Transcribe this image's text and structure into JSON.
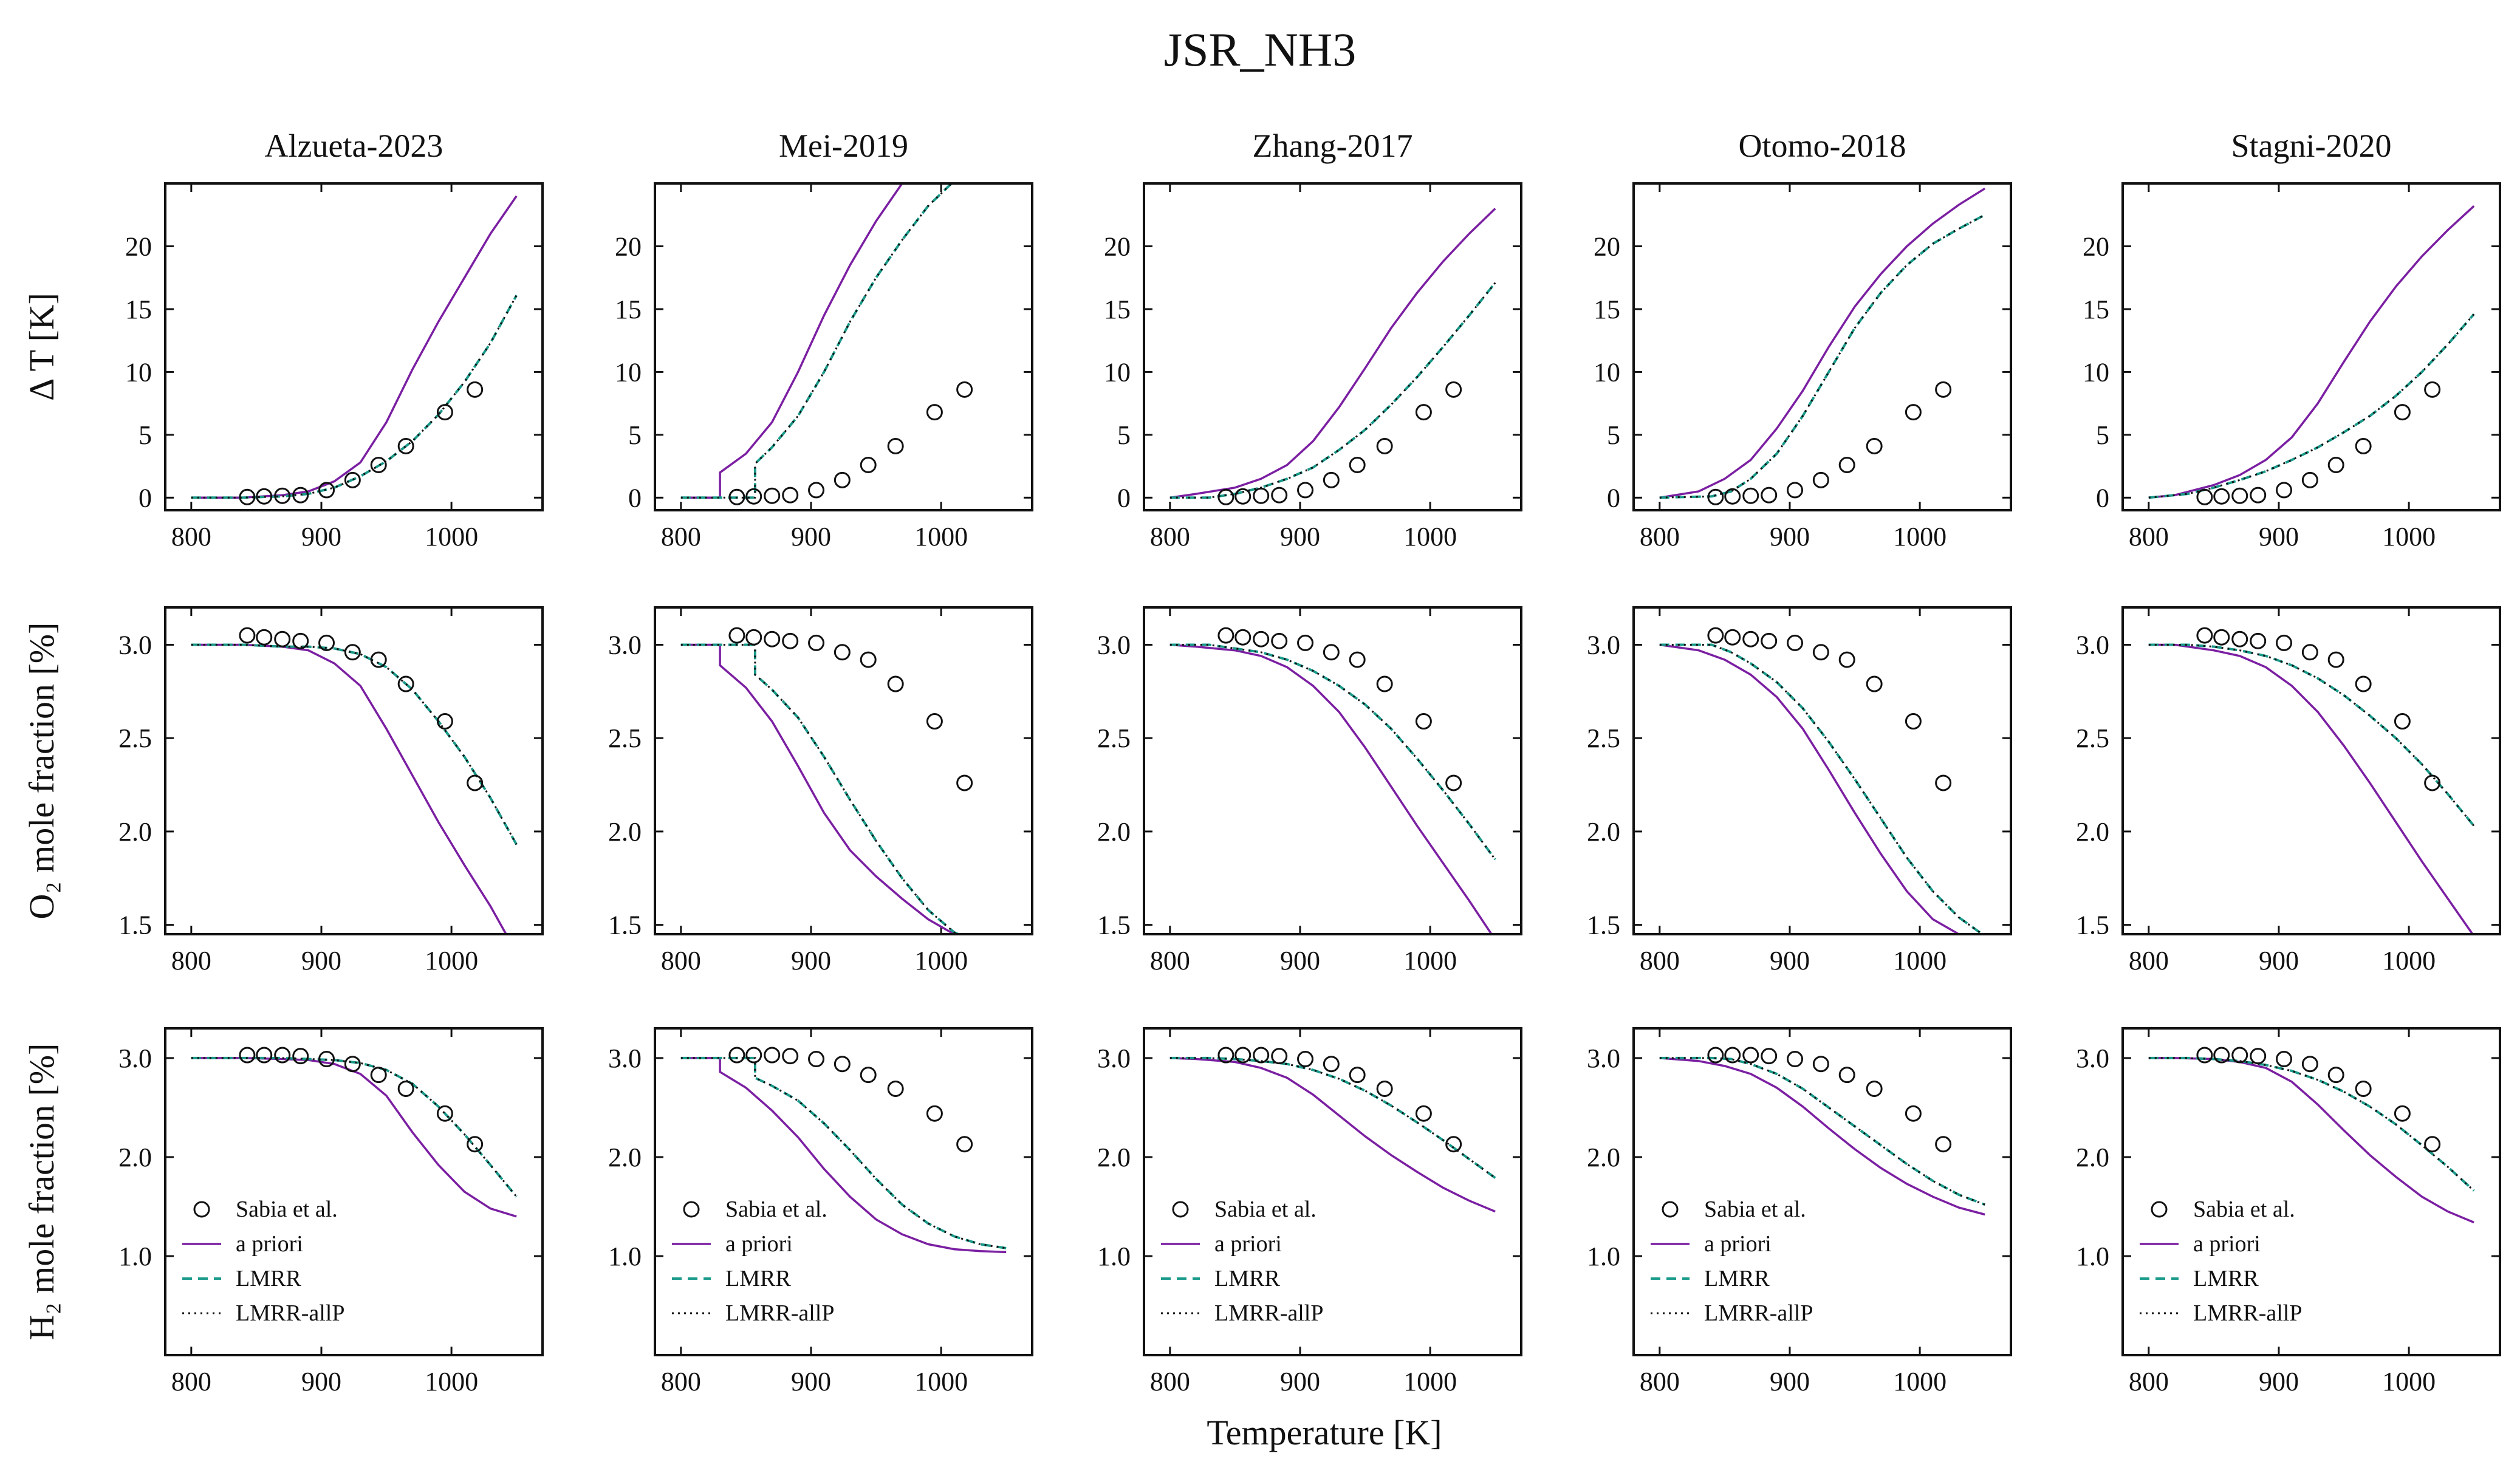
{
  "figure": {
    "title": "JSR_NH3",
    "xlabel": "Temperature [K]",
    "row_labels": [
      "Δ T [K]",
      "O₂ mole fraction [%]",
      "H₂ mole fraction [%]"
    ],
    "col_titles": [
      "Alzueta-2023",
      "Mei-2019",
      "Zhang-2017",
      "Otomo-2018",
      "Stagni-2020"
    ],
    "legend": [
      "Sabia et al.",
      "a priori",
      "LMRR",
      "LMRR-allP"
    ]
  },
  "colors": {
    "a_priori": "#7b1fa2",
    "lmrr": "#1a9a8a",
    "lmrr_allp": "#111111",
    "experiment": "#111111"
  },
  "chart_data": {
    "type": "line",
    "layout": "grid 3 rows x 5 columns",
    "xlim": [
      780,
      1070
    ],
    "xticks": [
      800,
      900,
      1000
    ],
    "rows": [
      {
        "name": "dT",
        "ylim": [
          -1,
          25
        ],
        "yticks": [
          0,
          5,
          10,
          15,
          20
        ],
        "ytick_labels": [
          "0",
          "5",
          "10",
          "15",
          "20"
        ]
      },
      {
        "name": "O2",
        "ylim": [
          1.45,
          3.2
        ],
        "yticks": [
          1.5,
          2.0,
          2.5,
          3.0
        ],
        "ytick_labels": [
          "1.5",
          "2.0",
          "2.5",
          "3.0"
        ]
      },
      {
        "name": "H2",
        "ylim": [
          0,
          3.3
        ],
        "yticks": [
          1.0,
          2.0,
          3.0
        ],
        "ytick_labels": [
          "1.0",
          "2.0",
          "3.0"
        ]
      }
    ],
    "experiment": {
      "name": "Sabia et al.",
      "x": [
        843,
        856,
        870,
        884,
        904,
        924,
        944,
        965,
        995,
        1018
      ],
      "dT": [
        0.05,
        0.1,
        0.15,
        0.2,
        0.6,
        1.4,
        2.6,
        4.1,
        6.8,
        8.6
      ],
      "O2": [
        3.05,
        3.04,
        3.03,
        3.02,
        3.01,
        2.96,
        2.92,
        2.79,
        2.59,
        2.26
      ],
      "H2": [
        3.03,
        3.03,
        3.03,
        3.02,
        2.99,
        2.94,
        2.83,
        2.69,
        2.44,
        2.13
      ]
    },
    "models": [
      {
        "title": "Alzueta-2023",
        "a_priori": {
          "x": [
            800,
            840,
            870,
            890,
            910,
            930,
            950,
            970,
            990,
            1010,
            1030,
            1050
          ],
          "dT": [
            0,
            0,
            0.2,
            0.5,
            1.3,
            2.8,
            6.0,
            10.2,
            14.0,
            17.5,
            21.0,
            24.0
          ],
          "O2": [
            3.0,
            3.0,
            2.99,
            2.97,
            2.9,
            2.78,
            2.55,
            2.3,
            2.05,
            1.82,
            1.6,
            1.35
          ],
          "H2": [
            3.0,
            3.0,
            2.99,
            2.98,
            2.94,
            2.84,
            2.62,
            2.25,
            1.92,
            1.65,
            1.48,
            1.4
          ]
        },
        "lmrr": {
          "x": [
            800,
            840,
            870,
            890,
            910,
            930,
            950,
            970,
            990,
            1010,
            1030,
            1050
          ],
          "dT": [
            0,
            0,
            0.1,
            0.3,
            0.8,
            1.7,
            2.9,
            4.5,
            6.6,
            9.2,
            12.3,
            16.1
          ],
          "O2": [
            3.0,
            3.0,
            2.99,
            2.99,
            2.98,
            2.95,
            2.88,
            2.76,
            2.59,
            2.4,
            2.18,
            1.93
          ],
          "H2": [
            3.0,
            3.0,
            3.0,
            2.99,
            2.98,
            2.95,
            2.88,
            2.74,
            2.51,
            2.23,
            1.92,
            1.6
          ]
        }
      },
      {
        "title": "Mei-2019",
        "a_priori": {
          "x": [
            800,
            830,
            830,
            850,
            870,
            890,
            910,
            930,
            950,
            970,
            990,
            1010,
            1030,
            1050
          ],
          "dT": [
            0,
            0,
            2.0,
            3.5,
            6.0,
            10.0,
            14.5,
            18.5,
            22.0,
            25.0,
            25.5,
            25.5,
            25.5,
            25.5
          ],
          "O2": [
            3.0,
            3.0,
            2.89,
            2.77,
            2.59,
            2.35,
            2.1,
            1.9,
            1.76,
            1.64,
            1.53,
            1.45,
            1.42,
            1.4
          ],
          "H2": [
            3.0,
            3.0,
            2.86,
            2.7,
            2.47,
            2.2,
            1.88,
            1.6,
            1.37,
            1.22,
            1.12,
            1.07,
            1.05,
            1.04
          ]
        },
        "lmrr": {
          "x": [
            800,
            857,
            857,
            870,
            890,
            910,
            930,
            950,
            970,
            990,
            1010,
            1030,
            1050
          ],
          "dT": [
            0,
            0,
            2.7,
            4.0,
            6.5,
            10.0,
            14.0,
            17.5,
            20.5,
            23.2,
            25.2,
            25.5,
            25.5
          ],
          "O2": [
            3.0,
            3.0,
            2.84,
            2.76,
            2.61,
            2.4,
            2.17,
            1.95,
            1.75,
            1.58,
            1.46,
            1.4,
            1.4
          ],
          "H2": [
            3.0,
            3.0,
            2.8,
            2.72,
            2.57,
            2.34,
            2.07,
            1.78,
            1.52,
            1.33,
            1.2,
            1.12,
            1.08
          ]
        }
      },
      {
        "title": "Zhang-2017",
        "a_priori": {
          "x": [
            800,
            820,
            850,
            870,
            890,
            910,
            930,
            950,
            970,
            990,
            1010,
            1030,
            1050
          ],
          "dT": [
            0,
            0.3,
            0.8,
            1.5,
            2.6,
            4.5,
            7.2,
            10.3,
            13.5,
            16.3,
            18.8,
            21.0,
            23.0
          ],
          "O2": [
            3.0,
            2.99,
            2.97,
            2.94,
            2.88,
            2.78,
            2.64,
            2.45,
            2.24,
            2.03,
            1.83,
            1.63,
            1.42
          ],
          "H2": [
            3.0,
            2.99,
            2.96,
            2.9,
            2.8,
            2.63,
            2.42,
            2.21,
            2.02,
            1.85,
            1.69,
            1.56,
            1.45
          ]
        },
        "lmrr": {
          "x": [
            800,
            830,
            850,
            870,
            890,
            910,
            930,
            950,
            970,
            990,
            1010,
            1030,
            1050
          ],
          "dT": [
            0,
            0,
            0.3,
            0.8,
            1.5,
            2.4,
            3.8,
            5.4,
            7.4,
            9.6,
            12.0,
            14.5,
            17.1
          ],
          "O2": [
            3.0,
            3.0,
            2.98,
            2.96,
            2.92,
            2.86,
            2.78,
            2.68,
            2.55,
            2.39,
            2.22,
            2.04,
            1.85
          ],
          "H2": [
            3.0,
            3.0,
            2.99,
            2.97,
            2.94,
            2.88,
            2.79,
            2.67,
            2.52,
            2.35,
            2.17,
            1.98,
            1.79
          ]
        }
      },
      {
        "title": "Otomo-2018",
        "a_priori": {
          "x": [
            800,
            830,
            850,
            870,
            890,
            910,
            930,
            950,
            970,
            990,
            1010,
            1030,
            1050
          ],
          "dT": [
            0,
            0.5,
            1.5,
            3.0,
            5.5,
            8.5,
            12.0,
            15.2,
            17.8,
            20.0,
            21.8,
            23.3,
            24.6
          ],
          "O2": [
            3.0,
            2.97,
            2.92,
            2.84,
            2.72,
            2.55,
            2.33,
            2.1,
            1.88,
            1.68,
            1.53,
            1.45,
            1.42
          ],
          "H2": [
            3.0,
            2.97,
            2.92,
            2.84,
            2.7,
            2.51,
            2.29,
            2.08,
            1.89,
            1.73,
            1.6,
            1.49,
            1.42
          ]
        },
        "lmrr": {
          "x": [
            800,
            840,
            855,
            870,
            890,
            910,
            930,
            950,
            970,
            990,
            1010,
            1030,
            1050
          ],
          "dT": [
            0,
            0.1,
            0.5,
            1.5,
            3.5,
            6.5,
            10.0,
            13.5,
            16.3,
            18.5,
            20.2,
            21.4,
            22.5
          ],
          "O2": [
            3.0,
            3.0,
            2.96,
            2.9,
            2.8,
            2.66,
            2.48,
            2.28,
            2.07,
            1.86,
            1.68,
            1.54,
            1.44
          ],
          "H2": [
            3.0,
            3.0,
            2.99,
            2.94,
            2.84,
            2.69,
            2.5,
            2.31,
            2.12,
            1.93,
            1.76,
            1.62,
            1.52
          ]
        }
      },
      {
        "title": "Stagni-2020",
        "a_priori": {
          "x": [
            800,
            820,
            850,
            870,
            890,
            910,
            930,
            950,
            970,
            990,
            1010,
            1030,
            1050
          ],
          "dT": [
            0,
            0.2,
            1.0,
            1.8,
            3.0,
            4.8,
            7.5,
            10.8,
            14.0,
            16.8,
            19.2,
            21.3,
            23.2
          ],
          "O2": [
            3.0,
            3.0,
            2.97,
            2.94,
            2.88,
            2.78,
            2.64,
            2.46,
            2.26,
            2.05,
            1.84,
            1.64,
            1.44
          ],
          "H2": [
            3.0,
            3.0,
            2.99,
            2.96,
            2.9,
            2.76,
            2.53,
            2.27,
            2.02,
            1.8,
            1.6,
            1.45,
            1.34
          ]
        },
        "lmrr": {
          "x": [
            800,
            830,
            850,
            870,
            890,
            910,
            930,
            950,
            970,
            990,
            1010,
            1030,
            1050
          ],
          "dT": [
            0,
            0.3,
            0.8,
            1.4,
            2.1,
            3.0,
            4.0,
            5.2,
            6.5,
            8.1,
            10.0,
            12.2,
            14.6
          ],
          "O2": [
            3.0,
            3.0,
            2.99,
            2.97,
            2.94,
            2.89,
            2.82,
            2.73,
            2.62,
            2.5,
            2.36,
            2.2,
            2.03
          ],
          "H2": [
            3.0,
            3.0,
            2.99,
            2.97,
            2.93,
            2.87,
            2.78,
            2.66,
            2.51,
            2.33,
            2.12,
            1.9,
            1.66
          ]
        }
      }
    ]
  }
}
